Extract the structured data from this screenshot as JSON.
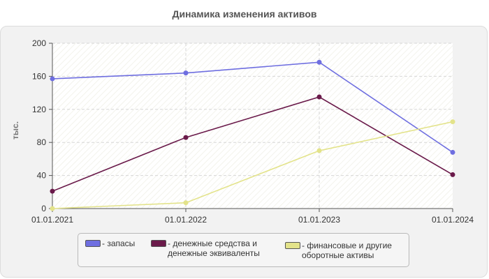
{
  "chart_data": {
    "type": "line",
    "title": "Динамика изменения активов",
    "ylabel": "тыс.",
    "xlabel": "",
    "categories": [
      "01.01.2021",
      "01.01.2022",
      "01.01.2023",
      "01.01.2024"
    ],
    "ylim": [
      0,
      200
    ],
    "yticks": [
      0,
      40,
      80,
      120,
      160,
      200
    ],
    "grid": true,
    "legend_position": "bottom",
    "series": [
      {
        "name": "- запасы",
        "color": "#6e6ee0",
        "values": [
          157,
          164,
          177,
          68
        ]
      },
      {
        "name": "- денежные средства и\nденежные эквиваленты",
        "color": "#6a1a4a",
        "values": [
          21,
          86,
          135,
          41
        ]
      },
      {
        "name": "- финансовые и другие\nоборотные активы",
        "color": "#e3e38a",
        "values": [
          0,
          7,
          70,
          105
        ]
      }
    ]
  }
}
